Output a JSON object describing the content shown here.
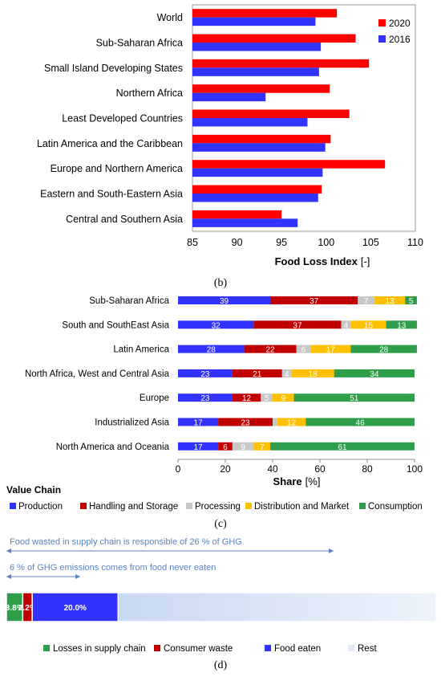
{
  "chart_data": [
    {
      "panel_label": "(b)",
      "type": "bar",
      "orientation": "horizontal",
      "categories": [
        "World",
        "Sub-Saharan Africa",
        "Small Island Developing States",
        "Northern Africa",
        "Least Developed Countries",
        "Latin America and the Caribbean",
        "Europe and Northern America",
        "Eastern and South-Eastern Asia",
        "Central and Southern Asia"
      ],
      "series": [
        {
          "name": "2020",
          "color": "#ff0000",
          "values": [
            101.2,
            103.3,
            104.8,
            100.4,
            102.6,
            100.5,
            106.6,
            99.5,
            95.0
          ]
        },
        {
          "name": "2016",
          "color": "#3333ff",
          "values": [
            98.8,
            99.4,
            99.2,
            93.2,
            97.9,
            99.9,
            99.6,
            99.1,
            96.8
          ]
        }
      ],
      "xlabel": "Food Loss Index",
      "xlabel_unit": "[-]",
      "xlim": [
        85,
        110
      ],
      "xticks": [
        "85",
        "90",
        "95",
        "100",
        "105",
        "110"
      ],
      "legend": "top-right",
      "grid": false
    },
    {
      "panel_label": "(c)",
      "type": "bar",
      "orientation": "horizontal",
      "stacked": true,
      "categories": [
        "Sub-Saharan Africa",
        "South and SouthEast Asia",
        "Latin America",
        "North Africa, West and Central Asia",
        "Europe",
        "Industrialized Asia",
        "North America and Oceania"
      ],
      "series": [
        {
          "name": "Production",
          "color": "#3333ff",
          "values": [
            39,
            32,
            28,
            23,
            23,
            17,
            17
          ]
        },
        {
          "name": "Handling and Storage",
          "color": "#c00000",
          "values": [
            37,
            37,
            22,
            21,
            12,
            23,
            6
          ]
        },
        {
          "name": "Processing",
          "color": "#c8c8c8",
          "values": [
            7,
            4,
            6,
            4,
            5,
            2,
            9
          ]
        },
        {
          "name": "Distribution and Market",
          "color": "#ffc000",
          "values": [
            13,
            15,
            17,
            18,
            9,
            12,
            7
          ]
        },
        {
          "name": "Consumption",
          "color": "#2e9e4a",
          "values": [
            5,
            13,
            28,
            34,
            51,
            46,
            61
          ]
        }
      ],
      "data_labels": [
        [
          "39",
          "37",
          "7",
          "13",
          "5"
        ],
        [
          "32",
          "37",
          "4",
          "15",
          "13"
        ],
        [
          "28",
          "22",
          "6",
          "17",
          "28"
        ],
        [
          "23",
          "21",
          "4",
          "18",
          "34"
        ],
        [
          "23",
          "12",
          "5",
          "9",
          "51"
        ],
        [
          "17",
          "23",
          "",
          "12",
          "46"
        ],
        [
          "17",
          "6",
          "9",
          "7",
          "61"
        ]
      ],
      "xlabel": "Share",
      "xlabel_unit": "[%]",
      "xlim": [
        0,
        100
      ],
      "xticks": [
        "0",
        "20",
        "40",
        "60",
        "80",
        "100"
      ],
      "legend_title": "Value Chain",
      "legend": "bottom",
      "grid": false
    },
    {
      "panel_label": "(d)",
      "type": "bar",
      "orientation": "horizontal",
      "stacked": true,
      "categories": [
        ""
      ],
      "series": [
        {
          "name": "Losses in supply chain",
          "color": "#2e9e4a",
          "values": [
            3.8
          ],
          "label": "3.8%"
        },
        {
          "name": "Consumer waste",
          "color": "#c00000",
          "values": [
            2.2
          ],
          "label": "2.2%"
        },
        {
          "name": "Food eaten",
          "color": "#3333ff",
          "values": [
            20.0
          ],
          "label": "20.0%"
        },
        {
          "name": "Rest",
          "color": "#dce6f7",
          "values": [
            74.0
          ],
          "label": ""
        }
      ],
      "annotations": [
        "Food wasted in supply chain is responsible of 26 % of GHG",
        "6 % of GHG emissions comes from food never eaten"
      ],
      "legend": "bottom"
    }
  ]
}
